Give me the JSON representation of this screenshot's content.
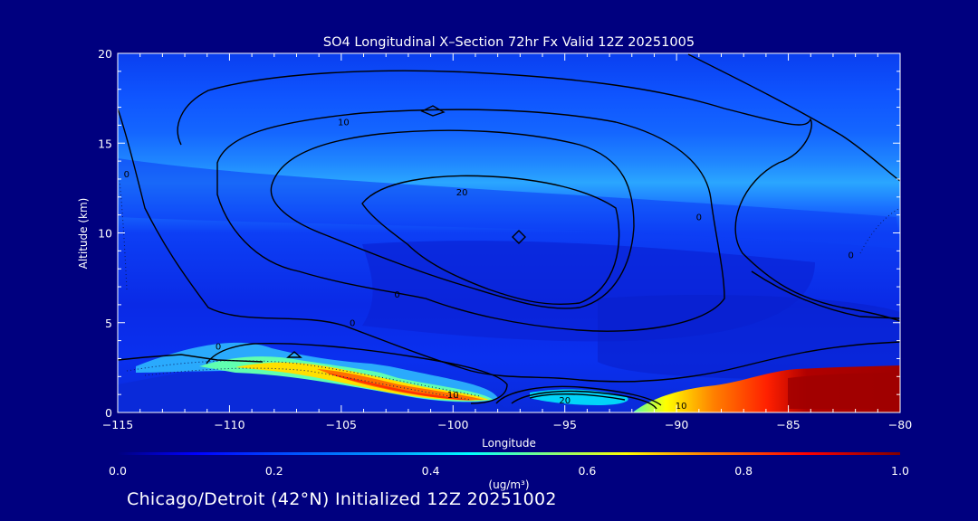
{
  "chart_data": {
    "type": "heatmap",
    "title": "SO4 Longitudinal X–Section 72hr  Fx Valid 12Z 20251005",
    "xlabel": "Longitude",
    "ylabel": "Altitude (km)",
    "xlim": [
      -115,
      -80
    ],
    "ylim": [
      0,
      20
    ],
    "x_ticks": [
      -115,
      -110,
      -105,
      -100,
      -95,
      -90,
      -85,
      -80
    ],
    "x_tick_labels": [
      "−115",
      "−110",
      "−105",
      "−100",
      "−95",
      "−90",
      "−85",
      "−80"
    ],
    "y_ticks": [
      0,
      5,
      10,
      15,
      20
    ],
    "y_tick_labels": [
      "0",
      "5",
      "10",
      "15",
      "20"
    ],
    "colorbar": {
      "min": 0.0,
      "max": 1.0,
      "ticks": [
        0.0,
        0.2,
        0.4,
        0.6,
        0.8,
        1.0
      ],
      "tick_labels": [
        "0.0",
        "0.2",
        "0.4",
        "0.6",
        "0.8",
        "1.0"
      ],
      "unit_label": "(ug/m³)",
      "colors": [
        "#00007f",
        "#0000ff",
        "#0080ff",
        "#00ffff",
        "#80ff80",
        "#ffff00",
        "#ff8000",
        "#ff0000",
        "#800000"
      ]
    },
    "contour_labels": [
      {
        "text": "10",
        "lon": -104.9,
        "alt": 16.0
      },
      {
        "text": "20",
        "lon": -99.6,
        "alt": 12.1
      },
      {
        "text": "0",
        "lon": -114.6,
        "alt": 13.1
      },
      {
        "text": "0",
        "lon": -89.0,
        "alt": 10.7
      },
      {
        "text": "0",
        "lon": -82.2,
        "alt": 8.6
      },
      {
        "text": "0",
        "lon": -102.5,
        "alt": 6.4
      },
      {
        "text": "0",
        "lon": -104.5,
        "alt": 4.8
      },
      {
        "text": "0",
        "lon": -110.5,
        "alt": 3.5
      },
      {
        "text": "10",
        "lon": -100.0,
        "alt": 0.8
      },
      {
        "text": "20",
        "lon": -95.0,
        "alt": 0.5
      },
      {
        "text": "10",
        "lon": -89.8,
        "alt": 0.2
      }
    ],
    "shaded_field": [
      {
        "region": "plume-top-band",
        "lon_range": [
          -115,
          -80
        ],
        "alt_range": [
          11,
          14
        ],
        "value": 0.35
      },
      {
        "region": "upper-layer",
        "lon_range": [
          -115,
          -80
        ],
        "alt_range": [
          15,
          20
        ],
        "value": 0.22
      },
      {
        "region": "mid-troposphere",
        "lon_range": [
          -100,
          -85
        ],
        "alt_range": [
          5,
          10
        ],
        "value": 0.05
      },
      {
        "region": "west-boundary-layer",
        "lon_range": [
          -109,
          -98
        ],
        "alt_range": [
          0.5,
          2.5
        ],
        "value": 0.55
      },
      {
        "region": "east-boundary-layer",
        "lon_range": [
          -92,
          -80
        ],
        "alt_range": [
          0,
          2
        ],
        "value": 0.85
      }
    ]
  },
  "footer": {
    "caption": "Chicago/Detroit (42°N) Initialized 12Z 20251002"
  }
}
